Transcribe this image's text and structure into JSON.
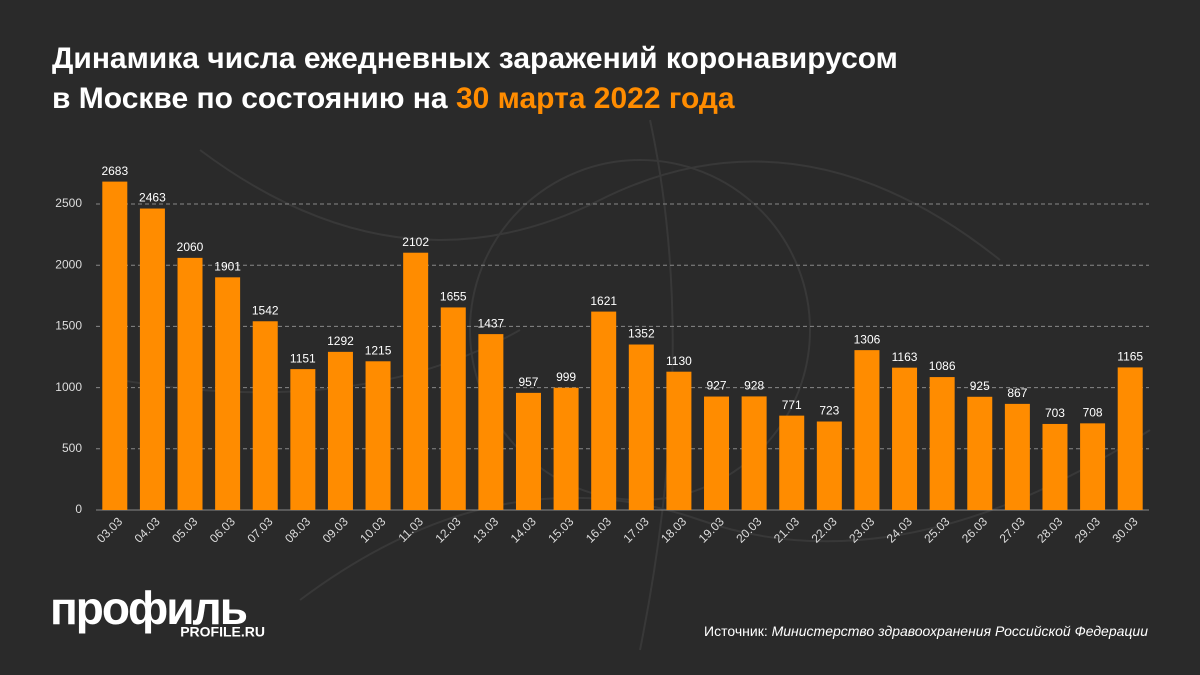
{
  "chart_data": {
    "type": "bar",
    "title": [
      "Динамика числа ежедневных заражений коронавирусом",
      "в Москве по состоянию на"
    ],
    "title_highlight": "30 марта 2022 года",
    "categories": [
      "03.03",
      "04.03",
      "05.03",
      "06.03",
      "07.03",
      "08.03",
      "09.03",
      "10.03",
      "11.03",
      "12.03",
      "13.03",
      "14.03",
      "15.03",
      "16.03",
      "17.03",
      "18.03",
      "19.03",
      "20.03",
      "21.03",
      "22.03",
      "23.03",
      "24.03",
      "25.03",
      "26.03",
      "27.03",
      "28.03",
      "29.03",
      "30.03"
    ],
    "values": [
      2683,
      2463,
      2060,
      1901,
      1542,
      1151,
      1292,
      1215,
      2102,
      1655,
      1437,
      957,
      999,
      1621,
      1352,
      1130,
      927,
      928,
      771,
      723,
      1306,
      1163,
      1086,
      925,
      867,
      703,
      708,
      1165
    ],
    "color": "#ff8c00",
    "ylim": [
      0,
      2750
    ],
    "yticks": [
      0,
      500,
      1000,
      1500,
      2000,
      2500
    ],
    "grid": true
  },
  "logo": {
    "name": "профиль",
    "site": "PROFILE.RU"
  },
  "source": {
    "label": "Источник:",
    "text": "Министерство здравоохранения Российской Федерации"
  }
}
